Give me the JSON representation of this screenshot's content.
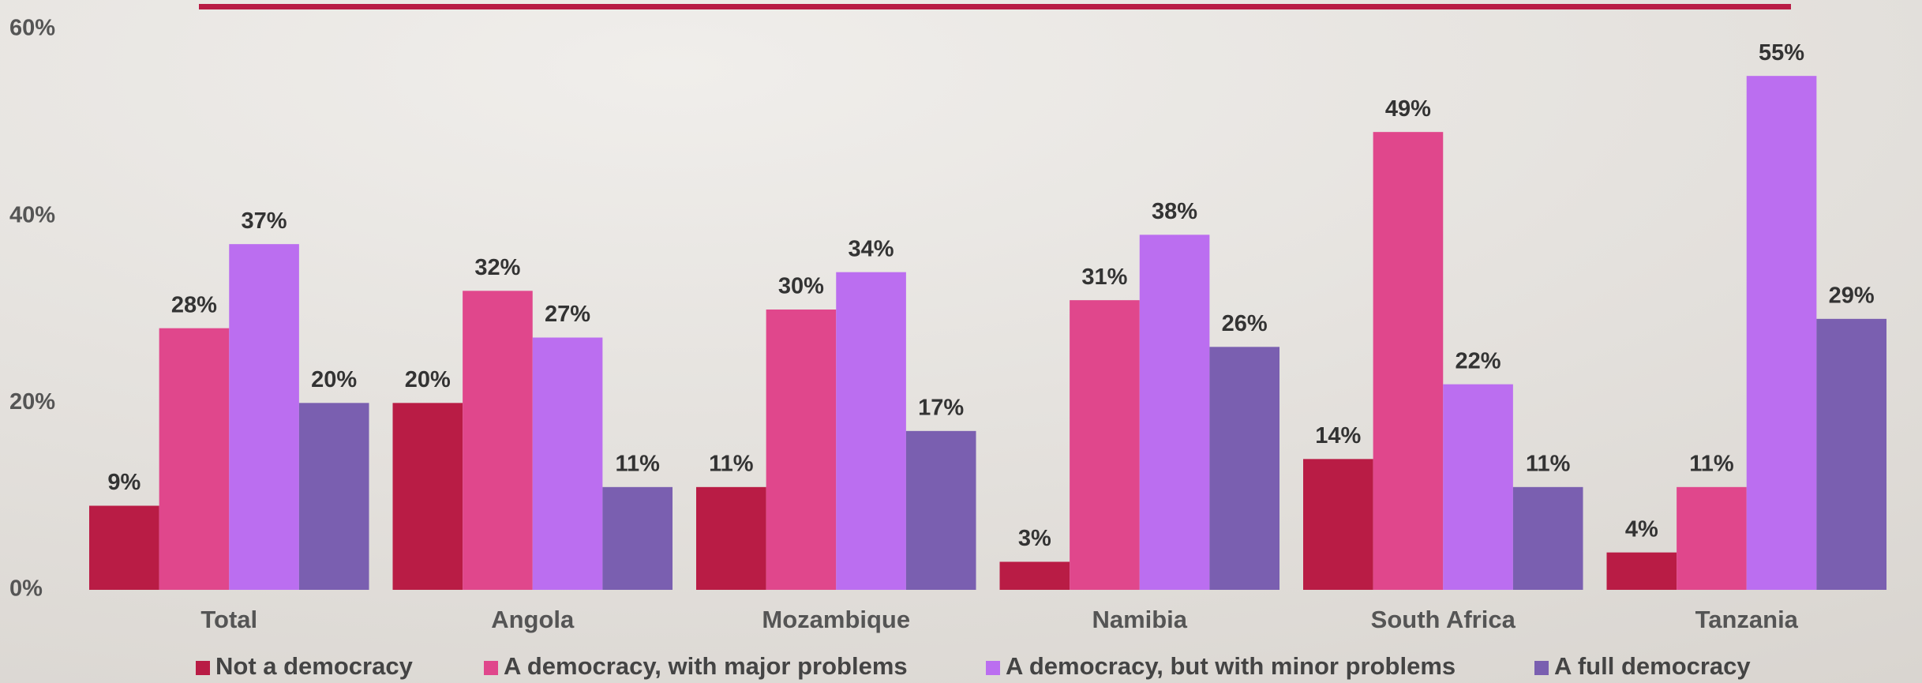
{
  "chart_data": {
    "type": "bar",
    "categories": [
      "Total",
      "Angola",
      "Mozambique",
      "Namibia",
      "South Africa",
      "Tanzania"
    ],
    "series": [
      {
        "name": "Not a democracy",
        "color": "#b91c45",
        "values": [
          9,
          20,
          11,
          3,
          14,
          4
        ],
        "value_labels": [
          "9%",
          "20%",
          "11%",
          "3%",
          "14%",
          "4%"
        ]
      },
      {
        "name": "A democracy, with major problems",
        "color": "#e0478c",
        "values": [
          28,
          32,
          30,
          31,
          49,
          11
        ],
        "value_labels": [
          "28%",
          "32%",
          "30%",
          "31%",
          "49%",
          "11%"
        ]
      },
      {
        "name": "A democracy, but with minor problems",
        "color": "#bb6ef0",
        "values": [
          37,
          27,
          34,
          38,
          22,
          55
        ],
        "value_labels": [
          "37%",
          "27%",
          "34%",
          "38%",
          "22%",
          "55%"
        ]
      },
      {
        "name": "A full democracy",
        "color": "#7a5fb0",
        "values": [
          20,
          11,
          17,
          26,
          11,
          29
        ],
        "value_labels": [
          "20%",
          "11%",
          "17%",
          "26%",
          "11%",
          "29%"
        ]
      }
    ],
    "ylim": [
      0,
      60
    ],
    "yticks": [
      {
        "value": 0,
        "label": "0%"
      },
      {
        "value": 20,
        "label": "20%"
      },
      {
        "value": 40,
        "label": "40%"
      },
      {
        "value": 60,
        "label": "60%"
      }
    ],
    "legend": "bottom"
  }
}
